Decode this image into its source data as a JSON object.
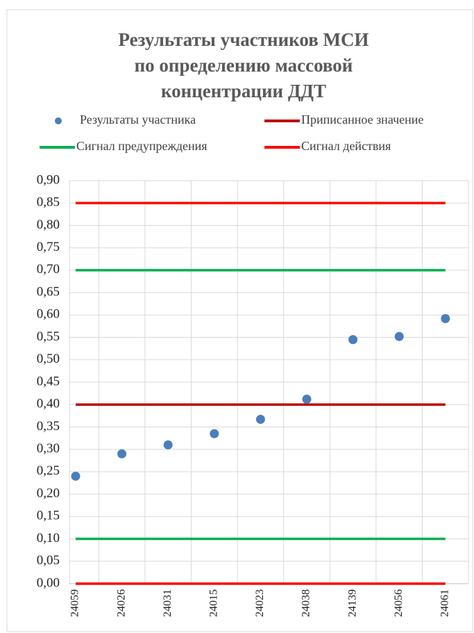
{
  "chart_data": {
    "type": "scatter",
    "title": [
      "Результаты участников МСИ",
      "по определению массовой",
      "концентрации ДДТ"
    ],
    "categories": [
      "24059",
      "24026",
      "24031",
      "24015",
      "24023",
      "24038",
      "24139",
      "24056",
      "24061"
    ],
    "series": [
      {
        "name": "Результаты участника",
        "color": "#4a7ebb",
        "values": [
          0.24,
          0.29,
          0.31,
          0.335,
          0.367,
          0.412,
          0.545,
          0.552,
          0.592
        ]
      }
    ],
    "lines": [
      {
        "name": "Приписанное значение",
        "color": "#c00000",
        "levels": [
          0.4
        ]
      },
      {
        "name": "Сигнал предупреждения",
        "color": "#00b050",
        "levels": [
          0.1,
          0.7
        ]
      },
      {
        "name": "Сигнал действия",
        "color": "#ff0000",
        "levels": [
          0.0,
          0.85
        ]
      }
    ],
    "ylim": [
      0,
      0.9
    ],
    "yticks": [
      {
        "value": 0,
        "label": "0,00"
      },
      {
        "value": 0.05,
        "label": "0,05"
      },
      {
        "value": 0.1,
        "label": "0,10"
      },
      {
        "value": 0.15,
        "label": "0,15"
      },
      {
        "value": 0.2,
        "label": "0,20"
      },
      {
        "value": 0.25,
        "label": "0,25"
      },
      {
        "value": 0.3,
        "label": "0,30"
      },
      {
        "value": 0.35,
        "label": "0,35"
      },
      {
        "value": 0.4,
        "label": "0,40"
      },
      {
        "value": 0.45,
        "label": "0,45"
      },
      {
        "value": 0.5,
        "label": "0,50"
      },
      {
        "value": 0.55,
        "label": "0,55"
      },
      {
        "value": 0.6,
        "label": "0,60"
      },
      {
        "value": 0.65,
        "label": "0,65"
      },
      {
        "value": 0.7,
        "label": "0,70"
      },
      {
        "value": 0.75,
        "label": "0,75"
      },
      {
        "value": 0.8,
        "label": "0,80"
      },
      {
        "value": 0.85,
        "label": "0,85"
      },
      {
        "value": 0.9,
        "label": "0,90"
      }
    ],
    "grid": true
  }
}
